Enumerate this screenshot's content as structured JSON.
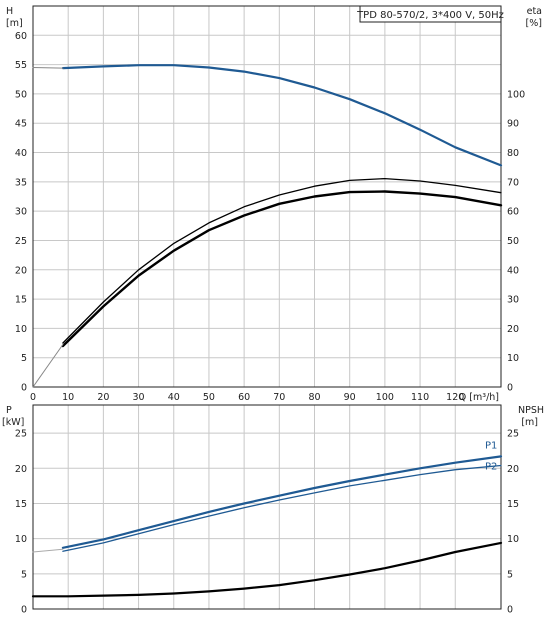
{
  "chart_data": [
    {
      "type": "line",
      "annotation": "TPD 80-570/2, 3*400 V, 50Hz",
      "ylabel": "H",
      "ylabel_unit": "[m]",
      "y2label": "eta",
      "y2label_unit": "[%]",
      "xlabel": "Q [m³/h]",
      "xlim": [
        0,
        133
      ],
      "ylim": [
        0,
        65
      ],
      "y2lim": [
        0,
        130
      ],
      "x_ticks": [
        0,
        10,
        20,
        30,
        40,
        50,
        60,
        70,
        80,
        90,
        100,
        110,
        120
      ],
      "y_ticks": [
        0,
        5,
        10,
        15,
        20,
        25,
        30,
        35,
        40,
        45,
        50,
        55,
        60
      ],
      "y2_ticks": [
        0,
        10,
        20,
        30,
        40,
        50,
        60,
        70,
        80,
        90,
        100
      ],
      "grid": true,
      "series": [
        {
          "role": "head",
          "axis": "left",
          "color": "#1f5a93",
          "x": [
            8.5,
            20,
            30,
            40,
            50,
            60,
            70,
            80,
            90,
            100,
            110,
            120,
            133
          ],
          "y": [
            54.4,
            54.7,
            54.9,
            54.9,
            54.5,
            53.8,
            52.7,
            51.1,
            49.1,
            46.7,
            43.9,
            40.9,
            37.8
          ]
        },
        {
          "role": "head-dashed-start",
          "axis": "left",
          "color": "#888888",
          "x": [
            0,
            8.5
          ],
          "y": [
            54.5,
            54.4
          ]
        },
        {
          "role": "eta-thin",
          "axis": "right",
          "color": "#000000",
          "x": [
            8.5,
            20,
            30,
            40,
            50,
            60,
            70,
            80,
            90,
            100,
            110,
            120,
            133
          ],
          "y": [
            15,
            29,
            40,
            49,
            56,
            61.5,
            65.5,
            68.5,
            70.5,
            71.1,
            70.3,
            68.8,
            66.3
          ]
        },
        {
          "role": "eta-thick",
          "axis": "right",
          "color": "#000000",
          "x": [
            8.5,
            20,
            30,
            40,
            50,
            60,
            70,
            80,
            90,
            100,
            110,
            120,
            133
          ],
          "y": [
            14,
            27.5,
            38,
            46.5,
            53.5,
            58.5,
            62.5,
            65,
            66.5,
            66.7,
            66,
            64.8,
            62
          ]
        },
        {
          "role": "eta-start",
          "axis": "right",
          "color": "#888888",
          "x": [
            0,
            8.5
          ],
          "y": [
            0,
            14.5
          ]
        }
      ]
    },
    {
      "type": "line",
      "ylabel": "P",
      "ylabel_unit": "[kW]",
      "y2label": "NPSH",
      "y2label_unit": "[m]",
      "xlim": [
        0,
        133
      ],
      "ylim": [
        0,
        29
      ],
      "y2lim": [
        0,
        29
      ],
      "y_ticks": [
        0,
        5,
        10,
        15,
        20,
        25
      ],
      "y2_ticks": [
        0,
        5,
        10,
        15,
        20,
        25
      ],
      "grid": true,
      "series": [
        {
          "name": "P1",
          "axis": "left",
          "color": "#1f5a93",
          "x": [
            8.5,
            20,
            30,
            40,
            50,
            60,
            70,
            80,
            90,
            100,
            110,
            120,
            133
          ],
          "y": [
            8.7,
            9.9,
            11.2,
            12.5,
            13.8,
            15,
            16.1,
            17.2,
            18.2,
            19.1,
            20,
            20.8,
            21.7
          ]
        },
        {
          "name": "P2",
          "axis": "left",
          "color": "#1f5a93",
          "x": [
            8.5,
            20,
            30,
            40,
            50,
            60,
            70,
            80,
            90,
            100,
            110,
            120,
            133
          ],
          "y": [
            8.2,
            9.4,
            10.7,
            12,
            13.2,
            14.4,
            15.5,
            16.5,
            17.5,
            18.3,
            19.1,
            19.8,
            20.4
          ]
        },
        {
          "role": "P-start",
          "axis": "left",
          "color": "#aaaaaa",
          "x": [
            0,
            8.5
          ],
          "y": [
            8.1,
            8.5
          ]
        },
        {
          "role": "npsh",
          "axis": "right",
          "color": "#000000",
          "x": [
            0,
            10,
            20,
            30,
            40,
            50,
            60,
            70,
            80,
            90,
            100,
            110,
            120,
            133
          ],
          "y": [
            1.8,
            1.8,
            1.9,
            2,
            2.2,
            2.5,
            2.9,
            3.4,
            4.1,
            4.9,
            5.8,
            6.9,
            8.1,
            9.4
          ]
        }
      ]
    }
  ]
}
